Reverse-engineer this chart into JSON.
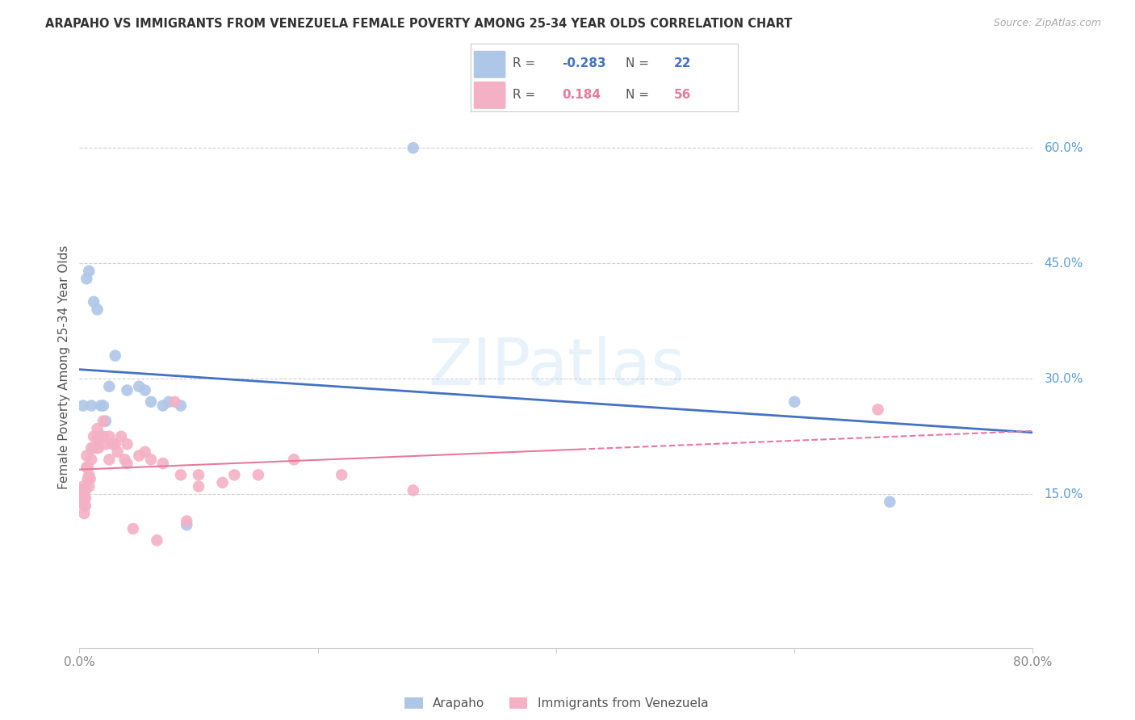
{
  "title": "ARAPAHO VS IMMIGRANTS FROM VENEZUELA FEMALE POVERTY AMONG 25-34 YEAR OLDS CORRELATION CHART",
  "source": "Source: ZipAtlas.com",
  "ylabel": "Female Poverty Among 25-34 Year Olds",
  "xlim": [
    0.0,
    0.8
  ],
  "ylim": [
    -0.05,
    0.68
  ],
  "ytick_right_labels": [
    "60.0%",
    "45.0%",
    "30.0%",
    "15.0%"
  ],
  "ytick_right_values": [
    0.6,
    0.45,
    0.3,
    0.15
  ],
  "background_color": "#ffffff",
  "grid_color": "#d0d0d0",
  "arapaho_color": "#aec6e8",
  "venezuela_color": "#f4b0c4",
  "arapaho_line_color": "#4472c4",
  "venezuela_line_color": "#e8799a",
  "legend_arapaho_R": "-0.283",
  "legend_arapaho_N": "22",
  "legend_venezuela_R": "0.184",
  "legend_venezuela_N": "56",
  "arapaho_x": [
    0.003,
    0.006,
    0.008,
    0.01,
    0.012,
    0.015,
    0.018,
    0.02,
    0.022,
    0.025,
    0.03,
    0.04,
    0.05,
    0.055,
    0.06,
    0.07,
    0.075,
    0.085,
    0.09,
    0.28,
    0.6,
    0.68
  ],
  "arapaho_y": [
    0.265,
    0.43,
    0.44,
    0.265,
    0.4,
    0.39,
    0.265,
    0.265,
    0.245,
    0.29,
    0.33,
    0.285,
    0.29,
    0.285,
    0.27,
    0.265,
    0.27,
    0.265,
    0.11,
    0.6,
    0.27,
    0.14
  ],
  "venezuela_x": [
    0.003,
    0.003,
    0.003,
    0.004,
    0.004,
    0.004,
    0.004,
    0.005,
    0.005,
    0.005,
    0.006,
    0.006,
    0.007,
    0.007,
    0.008,
    0.008,
    0.009,
    0.01,
    0.01,
    0.012,
    0.012,
    0.014,
    0.015,
    0.015,
    0.016,
    0.018,
    0.02,
    0.02,
    0.022,
    0.025,
    0.025,
    0.028,
    0.03,
    0.032,
    0.035,
    0.038,
    0.04,
    0.04,
    0.045,
    0.05,
    0.055,
    0.06,
    0.065,
    0.07,
    0.08,
    0.085,
    0.09,
    0.1,
    0.1,
    0.12,
    0.13,
    0.15,
    0.18,
    0.22,
    0.28,
    0.67
  ],
  "venezuela_y": [
    0.16,
    0.155,
    0.145,
    0.155,
    0.145,
    0.135,
    0.125,
    0.155,
    0.145,
    0.135,
    0.2,
    0.185,
    0.185,
    0.17,
    0.175,
    0.16,
    0.17,
    0.21,
    0.195,
    0.225,
    0.21,
    0.21,
    0.235,
    0.22,
    0.21,
    0.225,
    0.245,
    0.225,
    0.215,
    0.225,
    0.195,
    0.215,
    0.215,
    0.205,
    0.225,
    0.195,
    0.215,
    0.19,
    0.105,
    0.2,
    0.205,
    0.195,
    0.09,
    0.19,
    0.27,
    0.175,
    0.115,
    0.175,
    0.16,
    0.165,
    0.175,
    0.175,
    0.195,
    0.175,
    0.155,
    0.26
  ]
}
